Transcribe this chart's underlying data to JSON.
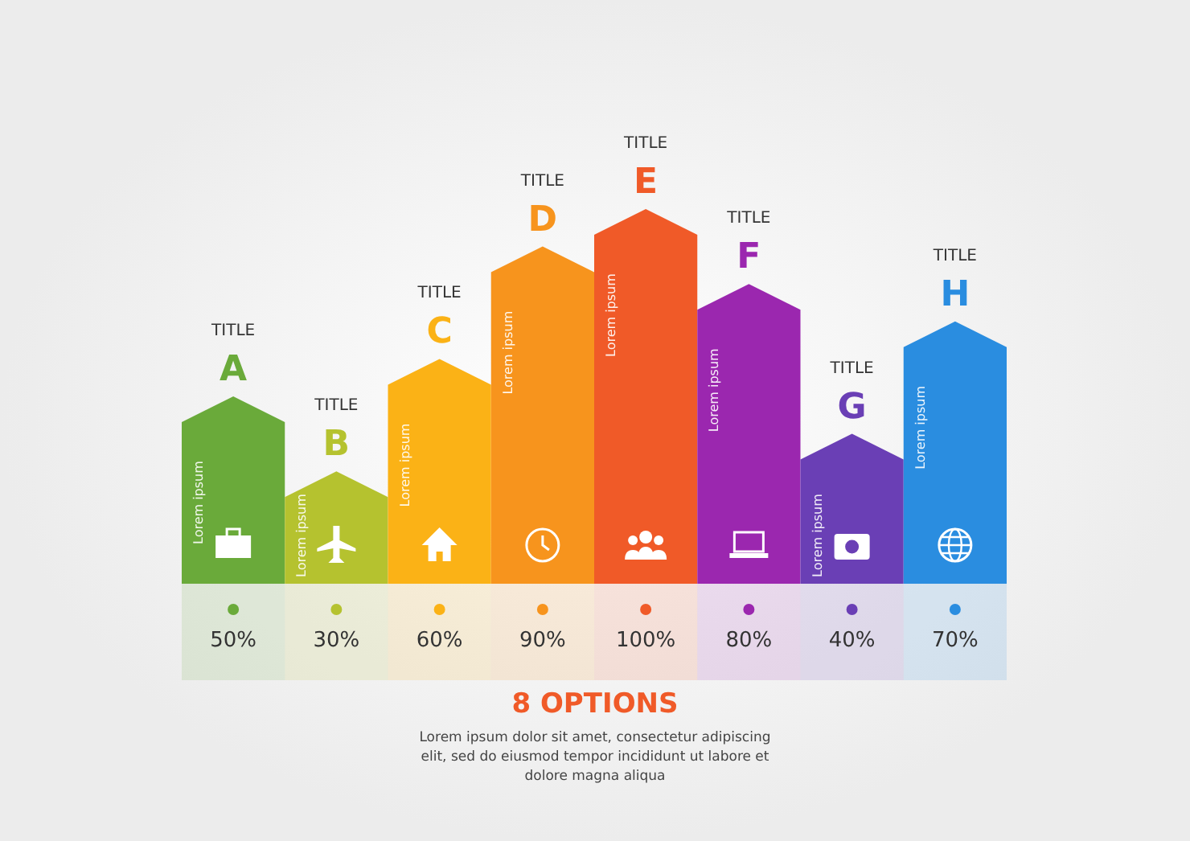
{
  "chart_data": {
    "type": "bar",
    "title": "8 OPTIONS",
    "subtitle": "Lorem ipsum dolor sit amet, consectetur adipiscing elit, sed do eiusmod tempor incididunt ut labore et dolore magna aliqua",
    "categories": [
      "A",
      "B",
      "C",
      "D",
      "E",
      "F",
      "G",
      "H"
    ],
    "values": [
      50,
      30,
      60,
      90,
      100,
      80,
      40,
      70
    ],
    "colors": [
      "#6aaa3a",
      "#b5c22f",
      "#fbb216",
      "#f7941d",
      "#f05a28",
      "#9b27af",
      "#6a3fb5",
      "#2a8de0"
    ],
    "value_labels": [
      "50%",
      "30%",
      "60%",
      "90%",
      "100%",
      "80%",
      "40%",
      "70%"
    ],
    "annotations": [
      "TITLE",
      "TITLE",
      "TITLE",
      "TITLE",
      "TITLE",
      "TITLE",
      "TITLE",
      "TITLE",
      "Lorem ipsum",
      "Lorem ipsum",
      "Lorem ipsum",
      "Lorem ipsum",
      "Lorem ipsum",
      "Lorem ipsum",
      "Lorem ipsum",
      "Lorem ipsum"
    ]
  }
}
